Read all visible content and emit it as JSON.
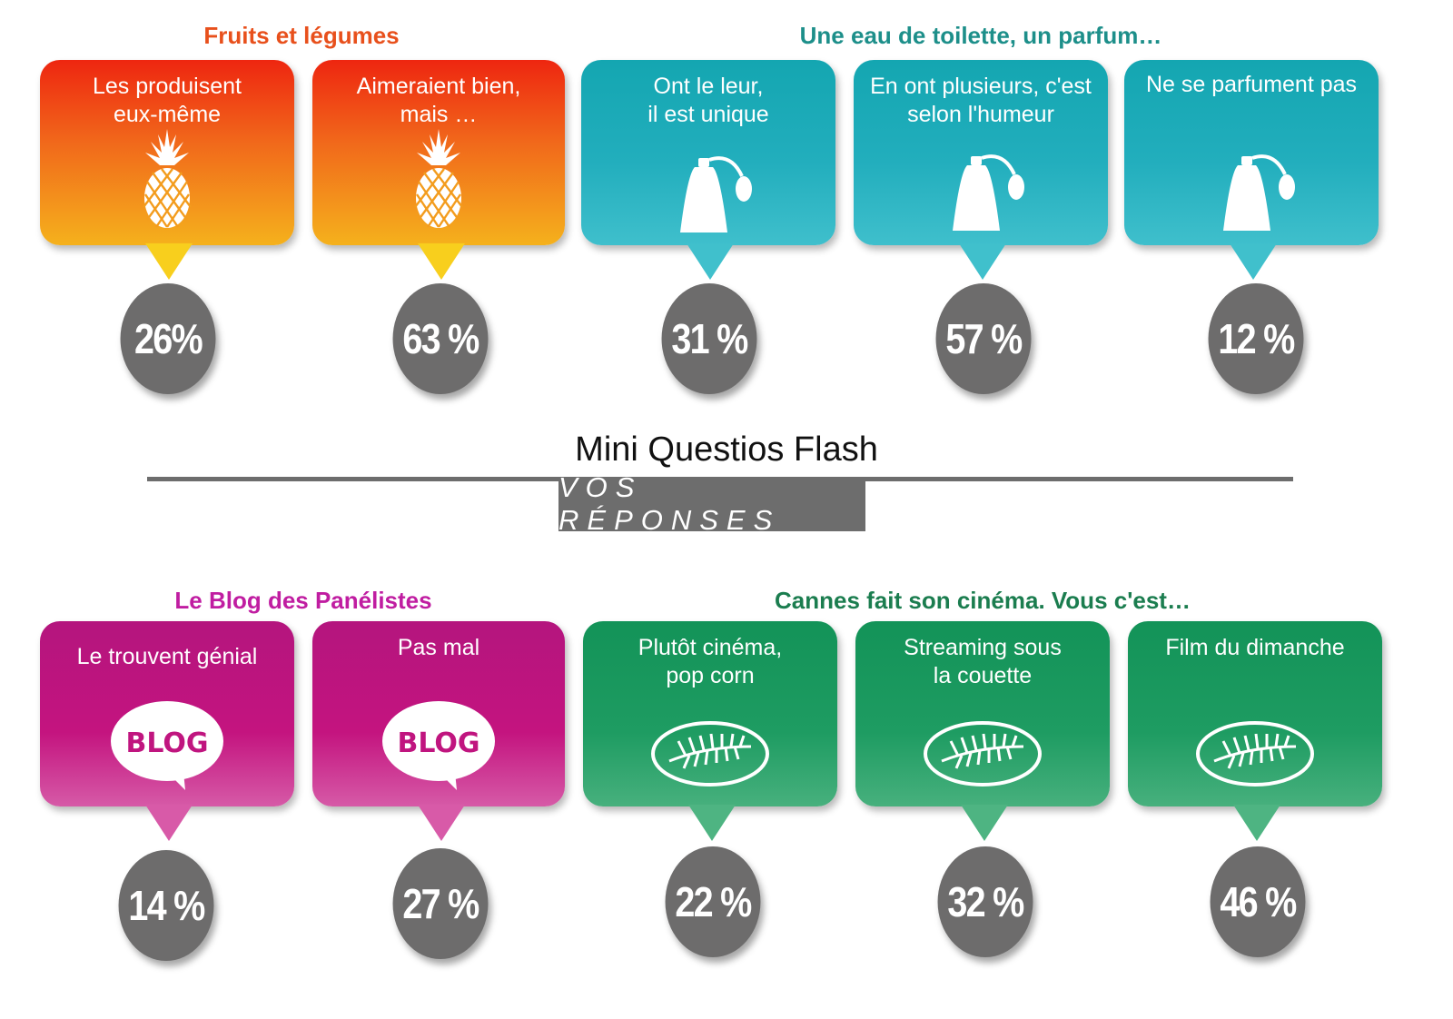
{
  "title": "Mini Questios Flash",
  "subtitle": "VOS RÉPONSES",
  "groups": [
    {
      "title": "Fruits et légumes",
      "color": "#e8501c"
    },
    {
      "title": "Une eau de toilette, un parfum…",
      "color": "#1d8f8a"
    },
    {
      "title": "Le Blog des Panélistes",
      "color": "#c01da1"
    },
    {
      "title": "Cannes fait son cinéma. Vous c'est…",
      "color": "#1b7d4f"
    }
  ],
  "cards": [
    {
      "label": "Les produisent\neux-même",
      "value": "26%",
      "icon": "pineapple-icon"
    },
    {
      "label": "Aimeraient bien,\nmais …",
      "value": "63 %",
      "icon": "pineapple-icon"
    },
    {
      "label": "Ont le leur,\nil est unique",
      "value": "31 %",
      "icon": "perfume-bottle-icon"
    },
    {
      "label": "En ont plusieurs, c'est\nselon l'humeur",
      "value": "57 %",
      "icon": "perfume-bottle-icon"
    },
    {
      "label": "Ne se parfument pas",
      "value": "12 %",
      "icon": "perfume-bottle-icon"
    },
    {
      "label": "Le trouvent génial",
      "value": "14 %",
      "icon": "blog-bubble-icon"
    },
    {
      "label": "Pas mal",
      "value": "27 %",
      "icon": "blog-bubble-icon"
    },
    {
      "label": "Plutôt cinéma,\npop corn",
      "value": "22 %",
      "icon": "palm-leaf-icon"
    },
    {
      "label": "Streaming sous\nla couette",
      "value": "32 %",
      "icon": "palm-leaf-icon"
    },
    {
      "label": "Film du dimanche",
      "value": "46 %",
      "icon": "palm-leaf-icon"
    }
  ],
  "icon_text": {
    "blog": "BLOG"
  }
}
